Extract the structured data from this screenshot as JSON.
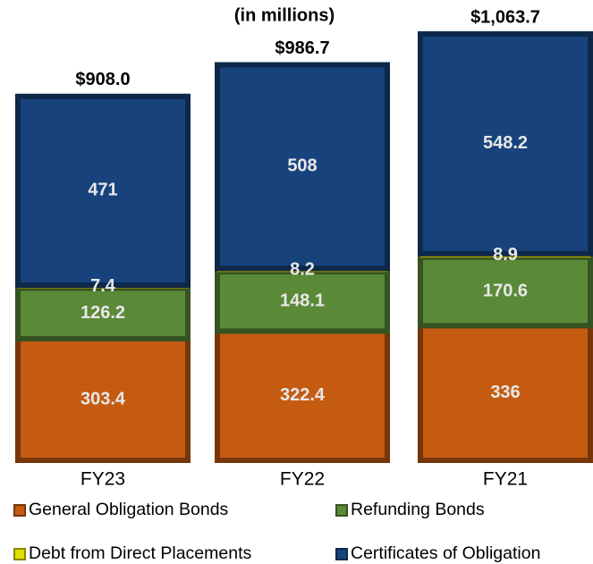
{
  "chart_data": {
    "type": "stacked_bar",
    "subtitle": "(in millions)",
    "categories": [
      "FY23",
      "FY22",
      "FY21"
    ],
    "series": [
      {
        "name": "General Obligation Bonds",
        "color": "#c55a11",
        "values": [
          303.4,
          322.4,
          336.0
        ]
      },
      {
        "name": "Refunding Bonds",
        "color": "#5a8a38",
        "values": [
          126.2,
          148.1,
          170.6
        ]
      },
      {
        "name": "Debt from Direct Placements",
        "color": "#e2e000",
        "values": [
          7.4,
          8.2,
          8.9
        ]
      },
      {
        "name": "Certificates of Obligation",
        "color": "#17427c",
        "values": [
          471.0,
          508.0,
          548.2
        ]
      }
    ],
    "totals": [
      908.0,
      986.7,
      1063.7
    ],
    "total_labels": [
      "$908.0",
      "$986.7",
      "$1,063.7"
    ]
  }
}
